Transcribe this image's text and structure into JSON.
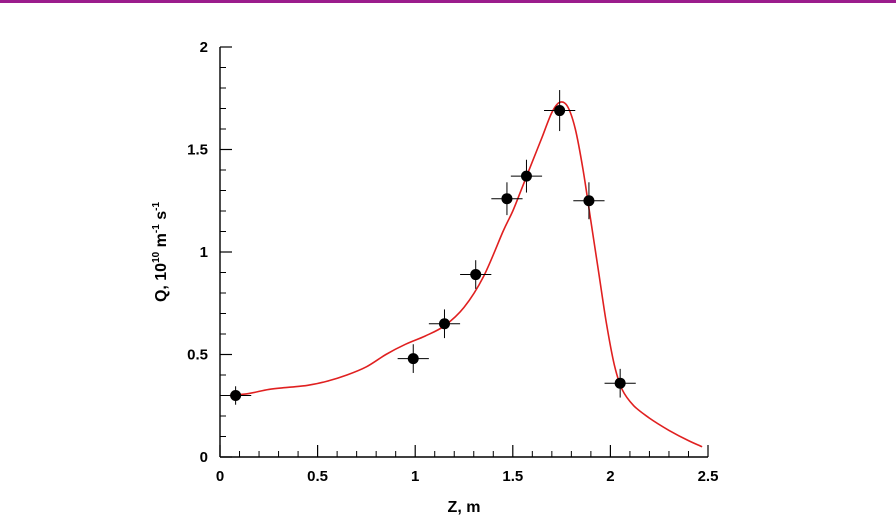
{
  "colors": {
    "top_rule": "#9b1c8c",
    "fit_curve": "#e02020",
    "points": "#000000",
    "error_bars": "#000000"
  },
  "chart_data": {
    "type": "scatter",
    "xlabel": "Z, m",
    "ylabel": {
      "prefix": "Q, 10",
      "exp1": "10",
      "mid": " m",
      "exp2": "-1",
      "mid2": " s",
      "exp3": "-1"
    },
    "xlim": [
      0,
      2.5
    ],
    "ylim": [
      0,
      2
    ],
    "x_ticks": [
      {
        "value": 0,
        "label": "0"
      },
      {
        "value": 0.5,
        "label": "0.5"
      },
      {
        "value": 1,
        "label": "1"
      },
      {
        "value": 1.5,
        "label": "1.5"
      },
      {
        "value": 2,
        "label": "2"
      },
      {
        "value": 2.5,
        "label": "2.5"
      }
    ],
    "y_ticks": [
      {
        "value": 0,
        "label": "0"
      },
      {
        "value": 0.5,
        "label": "0.5"
      },
      {
        "value": 1,
        "label": "1"
      },
      {
        "value": 1.5,
        "label": "1.5"
      },
      {
        "value": 2,
        "label": "2"
      }
    ],
    "points": [
      {
        "x": 0.08,
        "y": 0.3,
        "xerr": 0.08,
        "yerr": 0.045
      },
      {
        "x": 0.99,
        "y": 0.48,
        "xerr": 0.08,
        "yerr": 0.07
      },
      {
        "x": 1.15,
        "y": 0.65,
        "xerr": 0.08,
        "yerr": 0.07
      },
      {
        "x": 1.31,
        "y": 0.89,
        "xerr": 0.08,
        "yerr": 0.07
      },
      {
        "x": 1.47,
        "y": 1.26,
        "xerr": 0.08,
        "yerr": 0.08
      },
      {
        "x": 1.57,
        "y": 1.37,
        "xerr": 0.08,
        "yerr": 0.08
      },
      {
        "x": 1.74,
        "y": 1.69,
        "xerr": 0.08,
        "yerr": 0.1
      },
      {
        "x": 1.89,
        "y": 1.25,
        "xerr": 0.08,
        "yerr": 0.09
      },
      {
        "x": 2.05,
        "y": 0.36,
        "xerr": 0.08,
        "yerr": 0.07
      }
    ],
    "fit_curve": [
      [
        0.05,
        0.3
      ],
      [
        0.15,
        0.31
      ],
      [
        0.25,
        0.33
      ],
      [
        0.35,
        0.34
      ],
      [
        0.45,
        0.35
      ],
      [
        0.55,
        0.37
      ],
      [
        0.65,
        0.4
      ],
      [
        0.75,
        0.44
      ],
      [
        0.85,
        0.5
      ],
      [
        0.95,
        0.55
      ],
      [
        1.05,
        0.59
      ],
      [
        1.15,
        0.64
      ],
      [
        1.25,
        0.73
      ],
      [
        1.35,
        0.88
      ],
      [
        1.45,
        1.1
      ],
      [
        1.5,
        1.2
      ],
      [
        1.55,
        1.32
      ],
      [
        1.6,
        1.44
      ],
      [
        1.65,
        1.56
      ],
      [
        1.7,
        1.68
      ],
      [
        1.74,
        1.73
      ],
      [
        1.78,
        1.71
      ],
      [
        1.82,
        1.6
      ],
      [
        1.86,
        1.4
      ],
      [
        1.9,
        1.15
      ],
      [
        1.94,
        0.9
      ],
      [
        1.98,
        0.65
      ],
      [
        2.02,
        0.45
      ],
      [
        2.06,
        0.33
      ],
      [
        2.12,
        0.25
      ],
      [
        2.2,
        0.19
      ],
      [
        2.3,
        0.13
      ],
      [
        2.4,
        0.08
      ],
      [
        2.47,
        0.05
      ]
    ]
  }
}
